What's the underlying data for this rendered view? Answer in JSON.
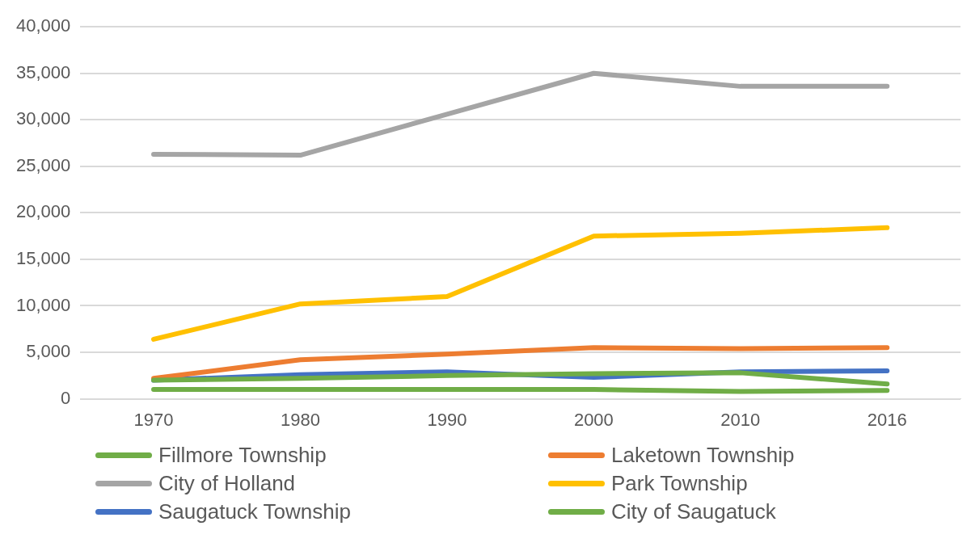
{
  "chart_data": {
    "type": "line",
    "categories": [
      "1970",
      "1980",
      "1990",
      "2000",
      "2010",
      "2016"
    ],
    "ylim": [
      0,
      40000
    ],
    "yticks": [
      0,
      {
        "value": 5000,
        "label": "5,000"
      },
      {
        "value": 10000,
        "label": "10,000"
      },
      {
        "value": 15000,
        "label": "15,000"
      },
      {
        "value": 20000,
        "label": "20,000"
      },
      {
        "value": 25000,
        "label": "25,000"
      },
      {
        "value": 30000,
        "label": "30,000"
      },
      {
        "value": 35000,
        "label": "35,000"
      },
      {
        "value": 40000,
        "label": "40,000"
      }
    ],
    "grid": "y",
    "legend": "bottom",
    "marker": "none",
    "line_style": "solid",
    "series": [
      {
        "name": "Fillmore Township",
        "color": "#70ad47",
        "values": [
          2000,
          2200,
          2500,
          2700,
          2800,
          1600
        ]
      },
      {
        "name": "Laketown Township",
        "color": "#ed7d31",
        "values": [
          2200,
          4200,
          4800,
          5500,
          5400,
          5500
        ]
      },
      {
        "name": "City of Holland",
        "color": "#a5a5a5",
        "values": [
          26300,
          26200,
          30600,
          35000,
          33600,
          33600
        ]
      },
      {
        "name": "Park Township",
        "color": "#ffc000",
        "values": [
          6400,
          10200,
          11000,
          17500,
          17800,
          18400
        ]
      },
      {
        "name": "Saugatuck Township",
        "color": "#4472c4",
        "values": [
          2000,
          2600,
          2900,
          2300,
          2900,
          3000
        ]
      },
      {
        "name": "City of Saugatuck",
        "color": "#70ad47",
        "values": [
          1000,
          1000,
          1000,
          1000,
          800,
          900
        ]
      }
    ]
  }
}
